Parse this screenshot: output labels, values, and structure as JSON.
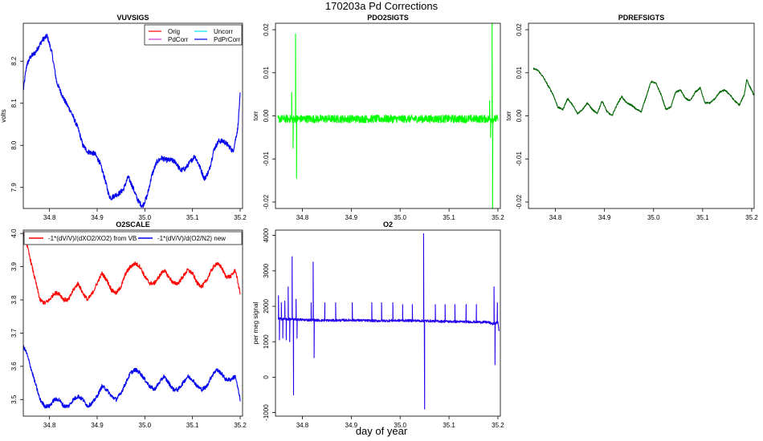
{
  "page": {
    "title": "170203a   Pd Corrections",
    "xlabel": "day of year"
  },
  "colors": {
    "Orig": "#ff0000",
    "Uncorr": "#00e5ee",
    "PdCorr": "#cc33cc",
    "PdPrCorr": "#0000ee",
    "PDO2SIGTS": "#00ff00",
    "PDREFSIGTS": "#006400",
    "scale_vb": "#ff0000",
    "scale_new": "#0000ee",
    "O2": "#2200ee"
  },
  "chart_data": [
    {
      "id": "vuvsigs",
      "type": "line",
      "title": "VUVSIGS",
      "ylabel": "volts",
      "xlim": [
        34.745,
        35.205
      ],
      "ylim": [
        7.85,
        8.29
      ],
      "xticks": [
        "34.8",
        "34.9",
        "35.0",
        "35.1",
        "35.2"
      ],
      "xtick_values": [
        34.8,
        34.9,
        35.0,
        35.1,
        35.2
      ],
      "yticks": [
        "7.9",
        "8.0",
        "8.1",
        "8.2"
      ],
      "ytick_values": [
        7.9,
        8.0,
        8.1,
        8.2
      ],
      "legend": {
        "position": "top-right",
        "entries": [
          "Orig",
          "Uncorr",
          "PdCorr",
          "PdPrCorr"
        ],
        "layout": "2x2"
      },
      "series": [
        {
          "name": "PdPrCorr",
          "color": "#0000ee",
          "noise": 0.006,
          "x": [
            34.745,
            34.752,
            34.76,
            34.77,
            34.785,
            34.795,
            34.805,
            34.815,
            34.83,
            34.845,
            34.86,
            34.87,
            34.88,
            34.895,
            34.905,
            34.915,
            34.925,
            34.93,
            34.935,
            34.945,
            34.955,
            34.965,
            34.975,
            34.985,
            34.995,
            35.005,
            35.015,
            35.025,
            35.035,
            35.045,
            35.055,
            35.065,
            35.075,
            35.085,
            35.095,
            35.105,
            35.115,
            35.125,
            35.135,
            35.145,
            35.155,
            35.165,
            35.175,
            35.185,
            35.195,
            35.2
          ],
          "y": [
            8.13,
            8.19,
            8.21,
            8.22,
            8.25,
            8.26,
            8.22,
            8.15,
            8.11,
            8.08,
            8.04,
            8.0,
            7.985,
            7.98,
            7.96,
            7.925,
            7.88,
            7.875,
            7.88,
            7.885,
            7.895,
            7.925,
            7.9,
            7.87,
            7.855,
            7.88,
            7.93,
            7.96,
            7.97,
            7.965,
            7.965,
            7.96,
            7.94,
            7.945,
            7.96,
            7.975,
            7.95,
            7.92,
            7.94,
            7.99,
            8.01,
            8.01,
            8.0,
            7.985,
            8.04,
            8.12
          ]
        }
      ]
    },
    {
      "id": "pdo2sigts",
      "type": "line",
      "title": "PDO2SIGTS",
      "ylabel": "torr",
      "xlim": [
        34.745,
        35.205
      ],
      "ylim": [
        -0.0215,
        0.0215
      ],
      "xticks": [
        "34.8",
        "34.9",
        "35.0",
        "35.1",
        "35.2"
      ],
      "xtick_values": [
        34.8,
        34.9,
        35.0,
        35.1,
        35.2
      ],
      "yticks": [
        "-0.02",
        "-0.01",
        "0.00",
        "0.01",
        "0.02"
      ],
      "ytick_values": [
        -0.02,
        -0.01,
        0.0,
        0.01,
        0.02
      ],
      "series": [
        {
          "name": "PDO2SIGTS",
          "color": "#00ff00",
          "noise": 0.0009,
          "baseline": -0.0007,
          "x": [
            34.75,
            35.2
          ],
          "y": [
            -0.0007,
            -0.0007
          ],
          "spikes": [
            {
              "x": 34.778,
              "y": 0.0055
            },
            {
              "x": 34.781,
              "y": -0.0075
            },
            {
              "x": 34.786,
              "y": 0.019
            },
            {
              "x": 34.788,
              "y": -0.0145
            },
            {
              "x": 35.183,
              "y": 0.0035
            },
            {
              "x": 35.185,
              "y": -0.005
            },
            {
              "x": 35.188,
              "y": 0.0215
            },
            {
              "x": 35.189,
              "y": -0.0215
            }
          ]
        }
      ]
    },
    {
      "id": "pdrefsigts",
      "type": "line",
      "title": "PDREFSIGTS",
      "ylabel": "torr",
      "xlim": [
        34.745,
        35.205
      ],
      "ylim": [
        -0.0215,
        0.0215
      ],
      "xticks": [
        "34.8",
        "34.9",
        "35.0",
        "35.1",
        "35.2"
      ],
      "xtick_values": [
        34.8,
        34.9,
        35.0,
        35.1,
        35.2
      ],
      "yticks": [
        "-0.02",
        "-0.01",
        "0.00",
        "0.01",
        "0.02"
      ],
      "ytick_values": [
        -0.02,
        -0.01,
        0.0,
        0.01,
        0.02
      ],
      "series": [
        {
          "name": "PDREFSIGTS",
          "color": "#006400",
          "noise": 0.0002,
          "x": [
            34.755,
            34.765,
            34.775,
            34.785,
            34.795,
            34.805,
            34.815,
            34.825,
            34.835,
            34.845,
            34.855,
            34.865,
            34.875,
            34.885,
            34.895,
            34.905,
            34.915,
            34.925,
            34.935,
            34.945,
            34.955,
            34.965,
            34.975,
            34.985,
            34.995,
            35.005,
            35.015,
            35.025,
            35.035,
            35.045,
            35.055,
            35.065,
            35.075,
            35.085,
            35.095,
            35.105,
            35.115,
            35.125,
            35.135,
            35.145,
            35.155,
            35.165,
            35.175,
            35.185,
            35.19,
            35.195,
            35.2,
            35.205
          ],
          "y": [
            0.011,
            0.0105,
            0.009,
            0.007,
            0.005,
            0.002,
            0.0015,
            0.004,
            0.0025,
            0.0005,
            0.0015,
            0.003,
            0.0015,
            0.0005,
            0.0035,
            0.001,
            0.0,
            0.0025,
            0.0045,
            0.003,
            0.0025,
            0.0015,
            0.001,
            0.0045,
            0.008,
            0.0075,
            0.005,
            0.0015,
            0.002,
            0.0055,
            0.006,
            0.004,
            0.0035,
            0.0055,
            0.0065,
            0.003,
            0.003,
            0.004,
            0.0055,
            0.006,
            0.005,
            0.0035,
            0.0025,
            0.005,
            0.0085,
            0.007,
            0.006,
            0.0045
          ]
        }
      ]
    },
    {
      "id": "o2scale",
      "type": "line",
      "title": "O2SCALE",
      "ylabel": "",
      "xlim": [
        34.745,
        35.205
      ],
      "ylim": [
        3.45,
        4.01
      ],
      "xticks": [
        "34.8",
        "34.9",
        "35.0",
        "35.1",
        "35.2"
      ],
      "xtick_values": [
        34.8,
        34.9,
        35.0,
        35.1,
        35.2
      ],
      "yticks": [
        "3.5",
        "3.6",
        "3.7",
        "3.8",
        "3.9",
        "4.0"
      ],
      "ytick_values": [
        3.5,
        3.6,
        3.7,
        3.8,
        3.9,
        4.0
      ],
      "legend": {
        "position": "top",
        "entries": [
          "-1*(dV/V)/(dXO2/XO2) from VB",
          "-1*(dV/V)/d(O2/N2) new"
        ],
        "layout": "1x2"
      },
      "series": [
        {
          "name": "-1*(dV/V)/(dXO2/XO2) from VB",
          "color": "#ff0000",
          "noise": 0.006,
          "x": [
            34.745,
            34.752,
            34.76,
            34.77,
            34.78,
            34.79,
            34.8,
            34.81,
            34.82,
            34.83,
            34.84,
            34.85,
            34.86,
            34.87,
            34.88,
            34.89,
            34.9,
            34.91,
            34.92,
            34.93,
            34.94,
            34.95,
            34.96,
            34.97,
            34.98,
            34.99,
            35.0,
            35.01,
            35.02,
            35.03,
            35.04,
            35.05,
            35.06,
            35.07,
            35.08,
            35.09,
            35.1,
            35.11,
            35.12,
            35.13,
            35.14,
            35.15,
            35.16,
            35.17,
            35.18,
            35.19,
            35.2
          ],
          "y": [
            4.0,
            3.97,
            3.92,
            3.86,
            3.8,
            3.79,
            3.8,
            3.82,
            3.82,
            3.8,
            3.8,
            3.83,
            3.85,
            3.82,
            3.8,
            3.82,
            3.85,
            3.88,
            3.86,
            3.83,
            3.82,
            3.84,
            3.88,
            3.9,
            3.91,
            3.9,
            3.87,
            3.85,
            3.85,
            3.87,
            3.89,
            3.87,
            3.85,
            3.85,
            3.87,
            3.89,
            3.88,
            3.85,
            3.84,
            3.86,
            3.89,
            3.91,
            3.9,
            3.87,
            3.87,
            3.89,
            3.82
          ]
        },
        {
          "name": "-1*(dV/V)/d(O2/N2) new",
          "color": "#0000ee",
          "noise": 0.006,
          "x": [
            34.745,
            34.752,
            34.76,
            34.77,
            34.78,
            34.79,
            34.8,
            34.81,
            34.82,
            34.83,
            34.84,
            34.85,
            34.86,
            34.87,
            34.88,
            34.89,
            34.9,
            34.91,
            34.92,
            34.93,
            34.94,
            34.95,
            34.96,
            34.97,
            34.98,
            34.99,
            35.0,
            35.01,
            35.02,
            35.03,
            35.04,
            35.05,
            35.06,
            35.07,
            35.08,
            35.09,
            35.1,
            35.11,
            35.12,
            35.13,
            35.14,
            35.15,
            35.16,
            35.17,
            35.18,
            35.19,
            35.2
          ],
          "y": [
            3.66,
            3.64,
            3.6,
            3.55,
            3.5,
            3.48,
            3.48,
            3.5,
            3.5,
            3.48,
            3.48,
            3.5,
            3.51,
            3.5,
            3.48,
            3.49,
            3.51,
            3.54,
            3.53,
            3.51,
            3.5,
            3.52,
            3.55,
            3.58,
            3.59,
            3.58,
            3.56,
            3.54,
            3.53,
            3.55,
            3.57,
            3.55,
            3.53,
            3.53,
            3.55,
            3.57,
            3.56,
            3.54,
            3.53,
            3.54,
            3.57,
            3.59,
            3.58,
            3.56,
            3.56,
            3.57,
            3.5
          ]
        }
      ]
    },
    {
      "id": "o2",
      "type": "line",
      "title": "O2",
      "ylabel": "per meg signal",
      "xlim": [
        34.745,
        35.205
      ],
      "ylim": [
        -1100,
        4150
      ],
      "xticks": [
        "34.8",
        "34.9",
        "35.0",
        "35.1",
        "35.2"
      ],
      "xtick_values": [
        34.8,
        34.9,
        35.0,
        35.1,
        35.2
      ],
      "yticks": [
        "-1000",
        "0",
        "1000",
        "2000",
        "3000",
        "4000"
      ],
      "ytick_values": [
        -1000,
        0,
        1000,
        2000,
        3000,
        4000
      ],
      "series": [
        {
          "name": "O2",
          "color": "#2200ee",
          "noise": 35,
          "x": [
            34.75,
            34.8,
            34.85,
            34.9,
            34.95,
            35.0,
            35.05,
            35.1,
            35.15,
            35.18,
            35.19,
            35.2
          ],
          "y": [
            1650,
            1620,
            1600,
            1610,
            1590,
            1600,
            1590,
            1570,
            1560,
            1550,
            1500,
            1550
          ],
          "spikes": [
            {
              "x": 34.751,
              "y": 2300
            },
            {
              "x": 34.753,
              "y": 1050
            },
            {
              "x": 34.757,
              "y": 2100
            },
            {
              "x": 34.76,
              "y": 1100
            },
            {
              "x": 34.764,
              "y": 2150
            },
            {
              "x": 34.767,
              "y": 1050
            },
            {
              "x": 34.771,
              "y": 2550
            },
            {
              "x": 34.774,
              "y": 1000
            },
            {
              "x": 34.779,
              "y": 3400
            },
            {
              "x": 34.782,
              "y": -500
            },
            {
              "x": 34.787,
              "y": 2200
            },
            {
              "x": 34.789,
              "y": 1100
            },
            {
              "x": 34.818,
              "y": 2100
            },
            {
              "x": 34.822,
              "y": 3250
            },
            {
              "x": 34.824,
              "y": 550
            },
            {
              "x": 34.846,
              "y": 2100
            },
            {
              "x": 34.868,
              "y": 2100
            },
            {
              "x": 34.902,
              "y": 2100
            },
            {
              "x": 34.942,
              "y": 2100
            },
            {
              "x": 34.962,
              "y": 2100
            },
            {
              "x": 34.985,
              "y": 2100
            },
            {
              "x": 35.005,
              "y": 2050
            },
            {
              "x": 35.025,
              "y": 2050
            },
            {
              "x": 35.048,
              "y": 4050
            },
            {
              "x": 35.05,
              "y": -900
            },
            {
              "x": 35.072,
              "y": 2050
            },
            {
              "x": 35.092,
              "y": 2050
            },
            {
              "x": 35.112,
              "y": 2050
            },
            {
              "x": 35.135,
              "y": 2050
            },
            {
              "x": 35.156,
              "y": 2050
            },
            {
              "x": 35.192,
              "y": 2550
            },
            {
              "x": 35.194,
              "y": 350
            },
            {
              "x": 35.199,
              "y": 2100
            },
            {
              "x": 35.202,
              "y": 1300
            }
          ]
        }
      ]
    }
  ]
}
